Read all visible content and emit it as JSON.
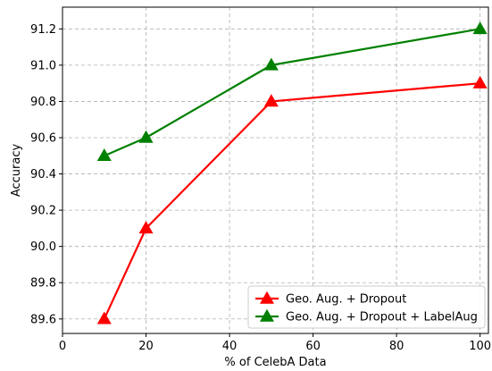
{
  "chart_data": {
    "type": "line",
    "xlabel": "% of CelebA Data",
    "ylabel": "Accuracy",
    "xlim": [
      0,
      102
    ],
    "ylim": [
      89.52,
      91.32
    ],
    "xticks": [
      0,
      20,
      40,
      60,
      80,
      100
    ],
    "yticks": [
      89.6,
      89.8,
      90.0,
      90.2,
      90.4,
      90.6,
      90.8,
      91.0,
      91.2
    ],
    "ytick_labels": [
      "89.6",
      "89.8",
      "90.0",
      "90.2",
      "90.4",
      "90.6",
      "90.8",
      "91.0",
      "91.2"
    ],
    "grid": true,
    "legend_position": "bottom-right",
    "series": [
      {
        "name": "Geo. Aug. + Dropout",
        "color": "#ff0000",
        "marker": "triangle",
        "x": [
          10,
          20,
          50,
          100
        ],
        "y": [
          89.6,
          90.1,
          90.8,
          90.9
        ]
      },
      {
        "name": "Geo. Aug. + Dropout + LabelAug",
        "color": "#008000",
        "marker": "triangle",
        "x": [
          10,
          20,
          50,
          100
        ],
        "y": [
          90.5,
          90.6,
          91.0,
          91.2
        ]
      }
    ]
  }
}
